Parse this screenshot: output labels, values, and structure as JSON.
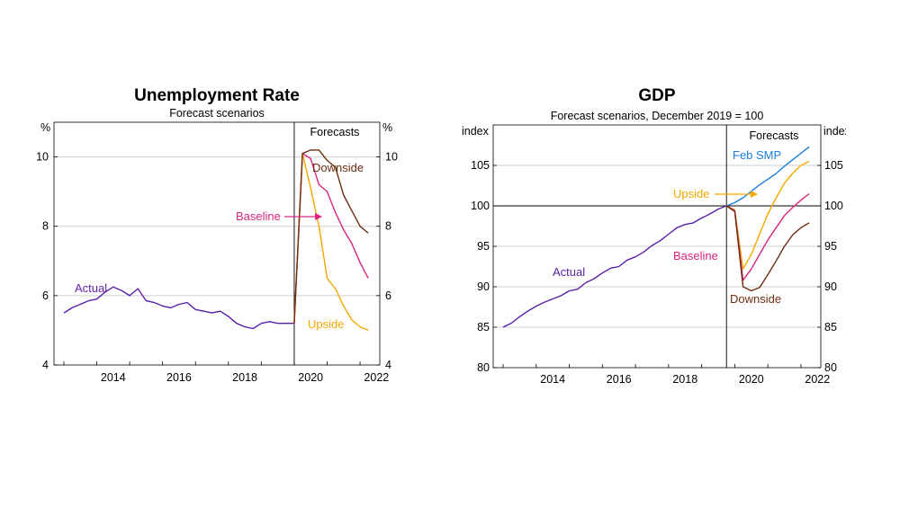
{
  "chart_data": [
    {
      "type": "line",
      "title": "Unemployment Rate",
      "subtitle": "Forecast scenarios",
      "left_unit": "%",
      "right_unit": "%",
      "ylim": [
        4,
        11
      ],
      "yticks": [
        4,
        6,
        8,
        10
      ],
      "xlim": [
        2012.7,
        2022.6
      ],
      "xticks": [
        2014,
        2016,
        2018,
        2020,
        2022
      ],
      "forecast_start": 2020.0,
      "forecast_label": "Forecasts",
      "grid": true,
      "series": [
        {
          "name": "Actual",
          "color": "#5b1fa8",
          "x": [
            2013.0,
            2013.25,
            2013.5,
            2013.75,
            2014.0,
            2014.25,
            2014.5,
            2014.75,
            2015.0,
            2015.25,
            2015.5,
            2015.75,
            2016.0,
            2016.25,
            2016.5,
            2016.75,
            2017.0,
            2017.25,
            2017.5,
            2017.75,
            2018.0,
            2018.25,
            2018.5,
            2018.75,
            2019.0,
            2019.25,
            2019.5,
            2019.75,
            2020.0
          ],
          "y": [
            5.5,
            5.65,
            5.75,
            5.85,
            5.9,
            6.1,
            6.25,
            6.15,
            6.0,
            6.2,
            5.85,
            5.8,
            5.7,
            5.65,
            5.75,
            5.8,
            5.6,
            5.55,
            5.5,
            5.55,
            5.4,
            5.2,
            5.1,
            5.05,
            5.2,
            5.25,
            5.2,
            5.2,
            5.2
          ]
        },
        {
          "name": "Baseline",
          "color": "#d9257f",
          "x": [
            2020.0,
            2020.25,
            2020.5,
            2020.75,
            2021.0,
            2021.25,
            2021.5,
            2021.75,
            2022.0,
            2022.25
          ],
          "y": [
            5.2,
            10.1,
            9.95,
            9.2,
            9.0,
            8.4,
            7.9,
            7.5,
            6.95,
            6.5
          ]
        },
        {
          "name": "Upside",
          "color": "#f5a800",
          "x": [
            2020.0,
            2020.25,
            2020.5,
            2020.75,
            2021.0,
            2021.25,
            2021.5,
            2021.75,
            2022.0,
            2022.25
          ],
          "y": [
            5.2,
            10.1,
            9.1,
            8.0,
            6.5,
            6.2,
            5.7,
            5.3,
            5.1,
            5.0
          ]
        },
        {
          "name": "Downside",
          "color": "#6b2d12",
          "x": [
            2020.0,
            2020.25,
            2020.5,
            2020.75,
            2021.0,
            2021.25,
            2021.5,
            2021.75,
            2022.0,
            2022.25
          ],
          "y": [
            5.2,
            10.1,
            10.2,
            10.2,
            9.9,
            9.7,
            8.9,
            8.45,
            8.0,
            7.8
          ]
        }
      ],
      "annotations": [
        {
          "text": "Actual",
          "series": "Actual"
        },
        {
          "text": "Baseline",
          "series": "Baseline",
          "arrow": true
        },
        {
          "text": "Upside",
          "series": "Upside"
        },
        {
          "text": "Downside",
          "series": "Downside"
        }
      ]
    },
    {
      "type": "line",
      "title": "GDP",
      "subtitle": "Forecast scenarios, December 2019 = 100",
      "left_unit": "index",
      "right_unit": "index",
      "ylim": [
        80,
        110
      ],
      "yticks": [
        80,
        85,
        90,
        95,
        100,
        105
      ],
      "xlim": [
        2012.7,
        2022.6
      ],
      "xticks": [
        2014,
        2016,
        2018,
        2020,
        2022
      ],
      "forecast_start": 2019.75,
      "forecast_label": "Forecasts",
      "reference_line": 100,
      "grid": true,
      "series": [
        {
          "name": "Actual",
          "color": "#5b1fa8",
          "x": [
            2013.0,
            2013.25,
            2013.5,
            2013.75,
            2014.0,
            2014.25,
            2014.5,
            2014.75,
            2015.0,
            2015.25,
            2015.5,
            2015.75,
            2016.0,
            2016.25,
            2016.5,
            2016.75,
            2017.0,
            2017.25,
            2017.5,
            2017.75,
            2018.0,
            2018.25,
            2018.5,
            2018.75,
            2019.0,
            2019.25,
            2019.5,
            2019.75
          ],
          "y": [
            85.0,
            85.5,
            86.3,
            87.0,
            87.6,
            88.1,
            88.5,
            88.9,
            89.5,
            89.7,
            90.5,
            91.0,
            91.7,
            92.3,
            92.5,
            93.3,
            93.7,
            94.3,
            95.1,
            95.7,
            96.5,
            97.3,
            97.7,
            97.9,
            98.5,
            99.0,
            99.6,
            100.0
          ]
        },
        {
          "name": "Feb SMP",
          "color": "#1a7ed6",
          "x": [
            2019.75,
            2020.0,
            2020.25,
            2020.5,
            2020.75,
            2021.0,
            2021.25,
            2021.5,
            2021.75,
            2022.0,
            2022.25
          ],
          "y": [
            100.0,
            100.4,
            101.0,
            101.8,
            102.6,
            103.3,
            104.0,
            104.9,
            105.7,
            106.5,
            107.3
          ]
        },
        {
          "name": "Upside",
          "color": "#f5a800",
          "x": [
            2019.75,
            2020.0,
            2020.25,
            2020.5,
            2020.75,
            2021.0,
            2021.25,
            2021.5,
            2021.75,
            2022.0,
            2022.25
          ],
          "y": [
            100.0,
            99.5,
            92.2,
            94.0,
            96.5,
            99.0,
            101.0,
            102.8,
            104.0,
            105.0,
            105.5
          ]
        },
        {
          "name": "Baseline",
          "color": "#d9257f",
          "x": [
            2019.75,
            2020.0,
            2020.25,
            2020.5,
            2020.75,
            2021.0,
            2021.25,
            2021.5,
            2021.75,
            2022.0,
            2022.25
          ],
          "y": [
            100.0,
            99.4,
            90.8,
            92.2,
            94.0,
            95.8,
            97.3,
            98.8,
            99.8,
            100.7,
            101.5
          ]
        },
        {
          "name": "Downside",
          "color": "#6b2d12",
          "x": [
            2019.75,
            2020.0,
            2020.25,
            2020.5,
            2020.75,
            2021.0,
            2021.25,
            2021.5,
            2021.75,
            2022.0,
            2022.25
          ],
          "y": [
            100.0,
            99.3,
            90.0,
            89.5,
            89.9,
            91.5,
            93.2,
            95.0,
            96.4,
            97.3,
            97.9
          ]
        }
      ],
      "annotations": [
        {
          "text": "Actual",
          "series": "Actual"
        },
        {
          "text": "Feb SMP",
          "series": "Feb SMP"
        },
        {
          "text": "Upside",
          "series": "Upside",
          "arrow": true
        },
        {
          "text": "Baseline",
          "series": "Baseline"
        },
        {
          "text": "Downside",
          "series": "Downside"
        }
      ]
    }
  ]
}
